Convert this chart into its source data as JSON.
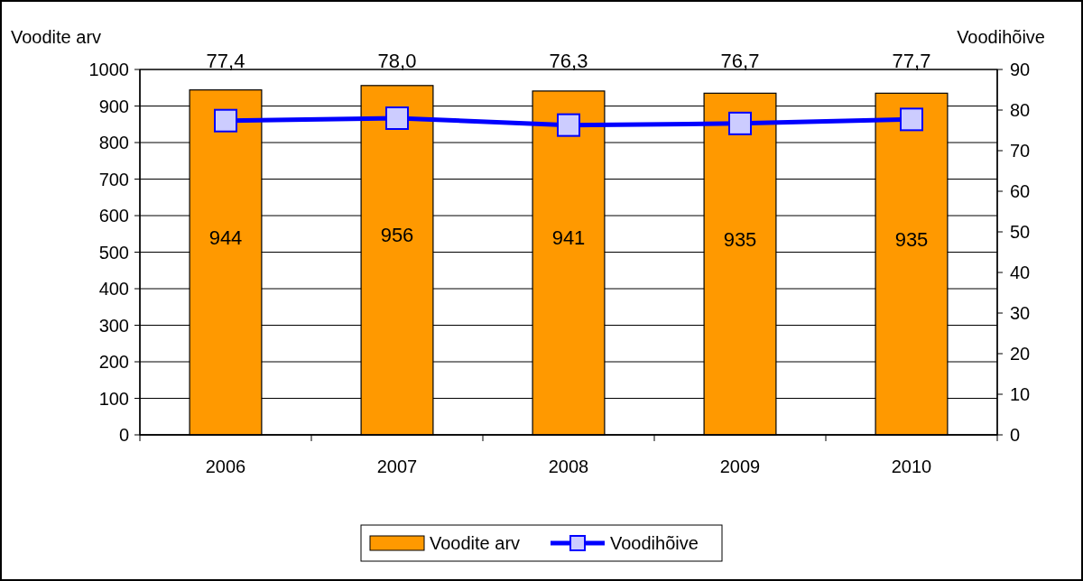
{
  "chart_data": {
    "type": "bar",
    "categories": [
      "2006",
      "2007",
      "2008",
      "2009",
      "2010"
    ],
    "series": [
      {
        "name": "Voodite arv",
        "color": "#ff9900",
        "values": [
          944,
          956,
          941,
          935,
          935
        ],
        "value_labels": [
          "944",
          "956",
          "941",
          "935",
          "935"
        ]
      },
      {
        "name": "Voodihõive",
        "type": "line",
        "axis": "y2",
        "color": "#0000ff",
        "values": [
          77.4,
          78.0,
          76.3,
          76.7,
          77.7
        ],
        "value_labels": [
          "77,4",
          "78,0",
          "76,3",
          "76,7",
          "77,7"
        ],
        "marker": "square"
      }
    ],
    "ylabel": "Voodite arv",
    "y2label": "Voodihõive",
    "ylim": [
      0,
      1000
    ],
    "yticks": [
      0,
      100,
      200,
      300,
      400,
      500,
      600,
      700,
      800,
      900,
      1000
    ],
    "y2lim": [
      0,
      90
    ],
    "y2ticks": [
      0,
      10,
      20,
      30,
      40,
      50,
      60,
      70,
      80,
      90
    ],
    "grid": "y",
    "legend": "bottom"
  }
}
